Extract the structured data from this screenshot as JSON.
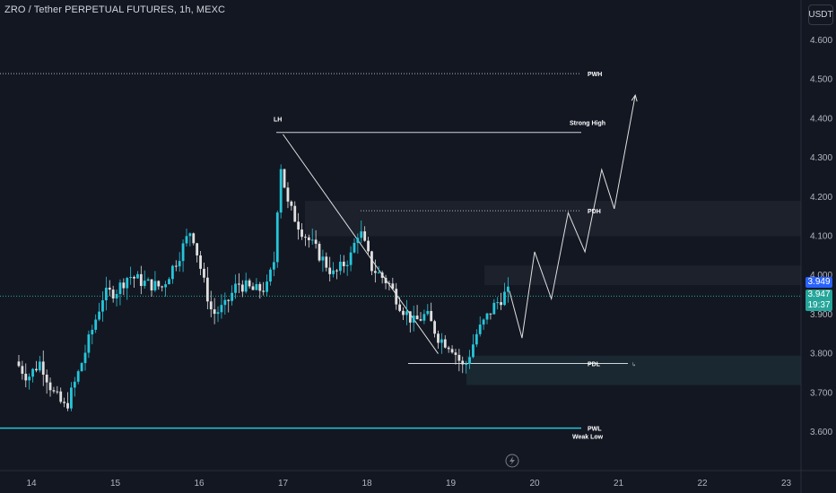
{
  "header": {
    "title": "ZRO / Tether PERPETUAL FUTURES, 1h, MEXC",
    "currency_button": "USDT"
  },
  "price_tags": {
    "last_price": "3.949",
    "current_price": "3.947",
    "countdown": "19:37"
  },
  "colors": {
    "background": "#131722",
    "bull": "#26c6da",
    "bear": "#e0e0e0",
    "accent_line": "#22ab94",
    "price_tag_blue": "#2962ff",
    "price_tag_teal": "#26a69a"
  },
  "chart_data": {
    "type": "candlestick",
    "title": "ZRO / Tether PERPETUAL FUTURES, 1h, MEXC",
    "ylim": [
      3.55,
      4.68
    ],
    "y_ticks": [
      "4.600",
      "4.500",
      "4.400",
      "4.300",
      "4.200",
      "4.100",
      "4.000",
      "3.900",
      "3.800",
      "3.700",
      "3.600"
    ],
    "x_ticks": [
      "14",
      "15",
      "16",
      "17",
      "18",
      "19",
      "20",
      "21",
      "22",
      "23"
    ],
    "annotations": [
      {
        "label": "PWH",
        "price": 4.515
      },
      {
        "label": "LH",
        "price": 4.365
      },
      {
        "label": "Strong High",
        "price": 4.365
      },
      {
        "label": "PDH",
        "price": 4.165
      },
      {
        "label": "PDL",
        "price": 3.775
      },
      {
        "label": "PWL",
        "price": 3.61
      },
      {
        "label": "Weak Low",
        "price": 3.61
      }
    ],
    "zones": [
      {
        "from": 4.1,
        "to": 4.19
      },
      {
        "from": 3.975,
        "to": 4.025
      },
      {
        "from": 3.72,
        "to": 3.795
      }
    ],
    "trendline": {
      "from_day": 17.0,
      "from_price": 4.36,
      "to_day": 18.85,
      "to_price": 3.8
    },
    "projection": {
      "days": [
        19.7,
        19.85,
        20.0,
        20.2,
        20.4,
        20.6,
        20.8,
        20.95,
        21.2
      ],
      "prices": [
        3.96,
        3.84,
        4.06,
        3.94,
        4.16,
        4.06,
        4.27,
        4.17,
        4.46
      ]
    },
    "current_price": 3.947,
    "last_price": 3.949
  }
}
